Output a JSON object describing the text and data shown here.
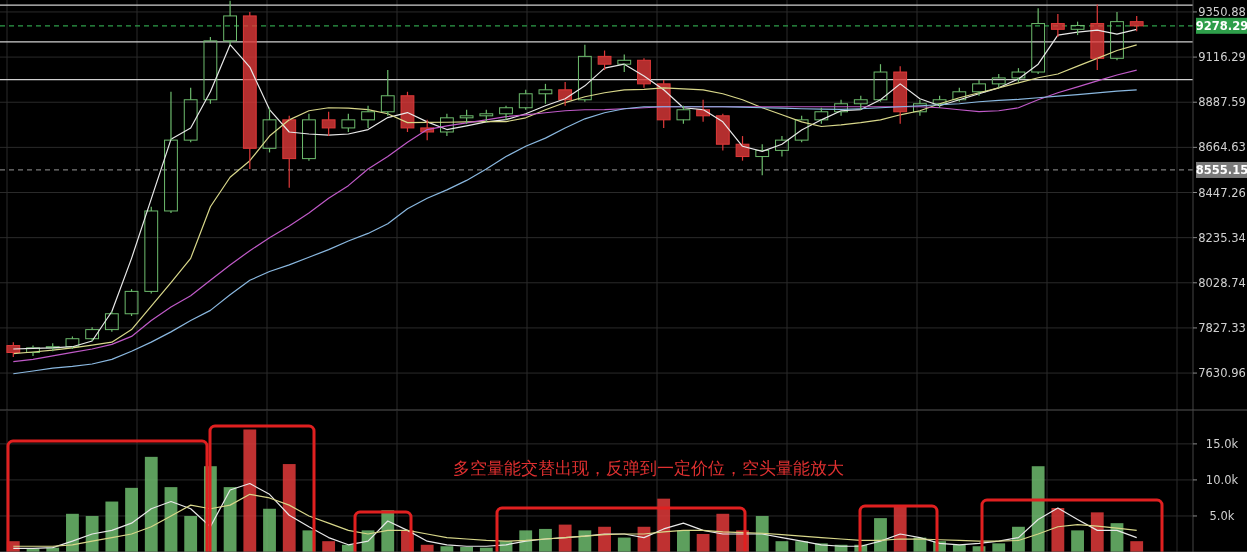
{
  "chart_data": [
    {
      "type": "candlestick",
      "log": true,
      "grid": true,
      "tick_labels": "y",
      "categories": [
        null,
        null,
        null,
        null,
        null,
        null,
        null,
        null,
        null,
        null,
        null,
        null,
        null,
        null,
        null,
        null,
        null,
        null,
        null,
        null,
        null,
        null,
        null,
        null,
        null,
        null,
        null,
        null,
        null,
        null,
        null,
        null,
        null,
        null,
        null,
        null,
        null,
        null,
        null,
        null,
        null,
        null,
        null,
        null,
        null,
        null,
        null,
        null,
        null,
        null,
        null,
        null,
        null,
        null,
        null,
        null,
        null,
        null
      ],
      "ylim": [
        7474,
        9414
      ],
      "yticks": [
        9350.88,
        9116.29,
        8887.59,
        8664.63,
        8447.26,
        8235.34,
        8028.74,
        7827.33,
        7630.96
      ],
      "ohlc": [
        [
          7750,
          7765,
          7700,
          7720
        ],
        [
          7720,
          7750,
          7705,
          7740
        ],
        [
          7740,
          7760,
          7725,
          7745
        ],
        [
          7745,
          7790,
          7735,
          7780
        ],
        [
          7780,
          7830,
          7770,
          7820
        ],
        [
          7820,
          7900,
          7810,
          7890
        ],
        [
          7890,
          8000,
          7880,
          7990
        ],
        [
          7990,
          8380,
          7980,
          8360
        ],
        [
          8360,
          8940,
          8350,
          8700
        ],
        [
          8700,
          8960,
          8690,
          8900
        ],
        [
          8900,
          9220,
          8880,
          9200
        ],
        [
          9200,
          9410,
          9180,
          9330
        ],
        [
          9330,
          9350,
          8560,
          8660
        ],
        [
          8660,
          8860,
          8640,
          8800
        ],
        [
          8800,
          8820,
          8470,
          8610
        ],
        [
          8610,
          8830,
          8600,
          8800
        ],
        [
          8800,
          8840,
          8720,
          8760
        ],
        [
          8760,
          8830,
          8740,
          8800
        ],
        [
          8800,
          8870,
          8760,
          8840
        ],
        [
          8840,
          9050,
          8820,
          8920
        ],
        [
          8920,
          8940,
          8740,
          8760
        ],
        [
          8760,
          8800,
          8700,
          8740
        ],
        [
          8740,
          8830,
          8720,
          8810
        ],
        [
          8810,
          8850,
          8780,
          8820
        ],
        [
          8820,
          8850,
          8790,
          8830
        ],
        [
          8830,
          8870,
          8800,
          8860
        ],
        [
          8860,
          8950,
          8850,
          8930
        ],
        [
          8930,
          8980,
          8880,
          8950
        ],
        [
          8950,
          8990,
          8870,
          8900
        ],
        [
          8900,
          9180,
          8890,
          9120
        ],
        [
          9120,
          9150,
          9050,
          9080
        ],
        [
          9080,
          9130,
          9040,
          9100
        ],
        [
          9100,
          9110,
          8960,
          8980
        ],
        [
          8980,
          9000,
          8760,
          8800
        ],
        [
          8800,
          8870,
          8780,
          8850
        ],
        [
          8850,
          8900,
          8790,
          8820
        ],
        [
          8820,
          8830,
          8650,
          8680
        ],
        [
          8680,
          8720,
          8600,
          8620
        ],
        [
          8620,
          8680,
          8530,
          8650
        ],
        [
          8650,
          8720,
          8620,
          8700
        ],
        [
          8700,
          8820,
          8690,
          8800
        ],
        [
          8800,
          8860,
          8780,
          8840
        ],
        [
          8840,
          8900,
          8820,
          8880
        ],
        [
          8880,
          8920,
          8850,
          8900
        ],
        [
          8900,
          9080,
          8890,
          9040
        ],
        [
          9040,
          9070,
          8780,
          8840
        ],
        [
          8840,
          8900,
          8820,
          8880
        ],
        [
          8880,
          8920,
          8860,
          8900
        ],
        [
          8900,
          8960,
          8890,
          8940
        ],
        [
          8940,
          9000,
          8920,
          8980
        ],
        [
          8980,
          9030,
          8960,
          9010
        ],
        [
          9010,
          9060,
          8990,
          9040
        ],
        [
          9040,
          9370,
          9030,
          9290
        ],
        [
          9290,
          9340,
          9220,
          9260
        ],
        [
          9260,
          9300,
          9230,
          9280
        ],
        [
          9290,
          9390,
          9050,
          9110
        ],
        [
          9110,
          9350,
          9100,
          9300
        ],
        [
          9300,
          9330,
          9250,
          9278
        ]
      ],
      "colors": [
        "#e03a3a",
        "#6dbb6d",
        "#6dbb6d",
        "#6dbb6d",
        "#6dbb6d",
        "#6dbb6d",
        "#6dbb6d",
        "#6dbb6d",
        "#6dbb6d",
        "#6dbb6d",
        "#6dbb6d",
        "#6dbb6d",
        "#e03a3a",
        "#6dbb6d",
        "#e03a3a",
        "#6dbb6d",
        "#e03a3a",
        "#6dbb6d",
        "#6dbb6d",
        "#6dbb6d",
        "#e03a3a",
        "#e03a3a",
        "#6dbb6d",
        "#6dbb6d",
        "#6dbb6d",
        "#6dbb6d",
        "#6dbb6d",
        "#6dbb6d",
        "#e03a3a",
        "#6dbb6d",
        "#e03a3a",
        "#6dbb6d",
        "#e03a3a",
        "#e03a3a",
        "#6dbb6d",
        "#e03a3a",
        "#e03a3a",
        "#e03a3a",
        "#6dbb6d",
        "#6dbb6d",
        "#6dbb6d",
        "#6dbb6d",
        "#6dbb6d",
        "#6dbb6d",
        "#6dbb6d",
        "#e03a3a",
        "#6dbb6d",
        "#6dbb6d",
        "#6dbb6d",
        "#6dbb6d",
        "#6dbb6d",
        "#6dbb6d",
        "#6dbb6d",
        "#e03a3a",
        "#6dbb6d",
        "#e03a3a",
        "#6dbb6d",
        "#e03a3a"
      ],
      "series": [
        {
          "type": "line",
          "color": "#e8e8e8",
          "values": [
            7735,
            7738,
            7740,
            7745,
            7770,
            7900,
            8140,
            8417,
            8704,
            8760,
            8940,
            9180,
            9065,
            8851,
            8740,
            8730,
            8725,
            8730,
            8752,
            8811,
            8836,
            8790,
            8752,
            8770,
            8790,
            8801,
            8830,
            8870,
            8905,
            8970,
            9060,
            9080,
            9020,
            8950,
            8860,
            8851,
            8790,
            8670,
            8645,
            8680,
            8750,
            8800,
            8845,
            8851,
            8900,
            8980,
            8905,
            8870,
            8900,
            8930,
            8960,
            9005,
            9080,
            9230,
            9245,
            9256,
            9235,
            9260
          ]
        },
        {
          "type": "line",
          "color": "#d8d78a",
          "values": [
            7715,
            7722,
            7730,
            7740,
            7752,
            7765,
            7820,
            7924,
            8030,
            8140,
            8380,
            8520,
            8600,
            8720,
            8800,
            8845,
            8860,
            8858,
            8851,
            8830,
            8786,
            8787,
            8788,
            8790,
            8791,
            8791,
            8810,
            8850,
            8886,
            8915,
            8935,
            8950,
            8952,
            8960,
            8955,
            8950,
            8930,
            8900,
            8860,
            8825,
            8790,
            8767,
            8775,
            8786,
            8800,
            8825,
            8845,
            8880,
            8910,
            8935,
            8960,
            8985,
            9011,
            9030,
            9070,
            9110,
            9150,
            9179
          ]
        },
        {
          "type": "line",
          "color": "#c05ac8",
          "values": [
            7680,
            7690,
            7705,
            7720,
            7735,
            7755,
            7790,
            7860,
            7920,
            7970,
            8040,
            8110,
            8175,
            8235,
            8290,
            8350,
            8420,
            8480,
            8560,
            8620,
            8690,
            8752,
            8770,
            8785,
            8800,
            8816,
            8825,
            8835,
            8845,
            8850,
            8851,
            8855,
            8860,
            8865,
            8865,
            8865,
            8865,
            8865,
            8865,
            8865,
            8865,
            8865,
            8865,
            8865,
            8865,
            8865,
            8865,
            8860,
            8850,
            8841,
            8845,
            8860,
            8900,
            8935,
            8965,
            8995,
            9025,
            9050
          ]
        },
        {
          "type": "line",
          "color": "#8ab8e0",
          "values": [
            7628,
            7640,
            7652,
            7660,
            7670,
            7690,
            7725,
            7765,
            7810,
            7860,
            7905,
            7975,
            8040,
            8080,
            8110,
            8145,
            8180,
            8220,
            8255,
            8300,
            8370,
            8420,
            8460,
            8505,
            8560,
            8620,
            8670,
            8710,
            8760,
            8805,
            8835,
            8855,
            8865,
            8865,
            8865,
            8865,
            8865,
            8863,
            8860,
            8858,
            8855,
            8853,
            8852,
            8855,
            8860,
            8865,
            8870,
            8875,
            8880,
            8890,
            8897,
            8902,
            8910,
            8918,
            8926,
            8935,
            8943,
            8950
          ]
        }
      ],
      "ref_lines": [
        {
          "axis": "y",
          "value": 9387,
          "color": "#d0d0d0",
          "line_style": "solid"
        },
        {
          "axis": "y",
          "value": 9195,
          "color": "#d0d0d0",
          "line_style": "solid"
        },
        {
          "axis": "y",
          "value": 9001,
          "color": "#d0d0d0",
          "line_style": "solid"
        },
        {
          "axis": "y",
          "value": 9278.29,
          "label": "9278.29",
          "color": "#2e9e4a",
          "line_style": "dashed"
        },
        {
          "axis": "y",
          "value": 8555.15,
          "label": "8555.15",
          "color": "#7a7a7a",
          "line_style": "dashed"
        }
      ]
    },
    {
      "type": "bar",
      "grid": true,
      "tick_labels": "y",
      "categories": [
        null,
        null,
        null,
        null,
        null,
        null,
        null,
        null,
        null,
        null,
        null,
        null,
        null,
        null,
        null,
        null,
        null,
        null,
        null,
        null,
        null,
        null,
        null,
        null,
        null,
        null,
        null,
        null,
        null,
        null,
        null,
        null,
        null,
        null,
        null,
        null,
        null,
        null,
        null,
        null,
        null,
        null,
        null,
        null,
        null,
        null,
        null,
        null,
        null,
        null,
        null,
        null,
        null,
        null,
        null,
        null,
        null,
        null
      ],
      "ylim": [
        0,
        19700
      ],
      "yticks": [
        {
          "value": 5000,
          "label": "5.0k"
        },
        {
          "value": 10000,
          "label": "10.0k"
        },
        {
          "value": 15000,
          "label": "15.0k"
        }
      ],
      "annotations": [
        "多空量能交替出现，反弹到一定价位，空头量能放大"
      ],
      "series": [
        {
          "type": "bar",
          "values": [
            1500,
            500,
            600,
            5300,
            5000,
            7000,
            8900,
            13200,
            9000,
            5000,
            11900,
            9000,
            17000,
            6000,
            12200,
            3000,
            1500,
            1000,
            3000,
            5800,
            3000,
            1000,
            800,
            700,
            600,
            1500,
            3000,
            3200,
            3800,
            3000,
            3500,
            2000,
            3500,
            7400,
            3000,
            2500,
            5300,
            3000,
            5000,
            1500,
            1500,
            1200,
            1000,
            1000,
            4700,
            6500,
            2000,
            1500,
            1000,
            800,
            1200,
            3500,
            11900,
            6100,
            3000,
            5500,
            4000,
            1500
          ],
          "colors": [
            "#e03a3a",
            "#6dbb6d",
            "#6dbb6d",
            "#6dbb6d",
            "#6dbb6d",
            "#6dbb6d",
            "#6dbb6d",
            "#6dbb6d",
            "#6dbb6d",
            "#6dbb6d",
            "#6dbb6d",
            "#6dbb6d",
            "#e03a3a",
            "#6dbb6d",
            "#e03a3a",
            "#6dbb6d",
            "#e03a3a",
            "#6dbb6d",
            "#6dbb6d",
            "#6dbb6d",
            "#e03a3a",
            "#e03a3a",
            "#6dbb6d",
            "#6dbb6d",
            "#6dbb6d",
            "#6dbb6d",
            "#6dbb6d",
            "#6dbb6d",
            "#e03a3a",
            "#6dbb6d",
            "#e03a3a",
            "#6dbb6d",
            "#e03a3a",
            "#e03a3a",
            "#6dbb6d",
            "#e03a3a",
            "#e03a3a",
            "#e03a3a",
            "#6dbb6d",
            "#6dbb6d",
            "#6dbb6d",
            "#6dbb6d",
            "#6dbb6d",
            "#6dbb6d",
            "#6dbb6d",
            "#e03a3a",
            "#6dbb6d",
            "#6dbb6d",
            "#6dbb6d",
            "#6dbb6d",
            "#6dbb6d",
            "#6dbb6d",
            "#6dbb6d",
            "#e03a3a",
            "#6dbb6d",
            "#e03a3a",
            "#6dbb6d",
            "#e03a3a"
          ]
        },
        {
          "type": "line",
          "color": "#e8e8e8",
          "values": [
            500,
            500,
            600,
            1500,
            2500,
            3000,
            4000,
            6000,
            7000,
            6000,
            3500,
            8600,
            9500,
            8000,
            5100,
            3500,
            2000,
            1000,
            1500,
            4300,
            3000,
            1500,
            1000,
            800,
            800,
            1000,
            1500,
            1800,
            2000,
            2200,
            2500,
            2500,
            2000,
            3200,
            4000,
            3000,
            2500,
            2500,
            2500,
            2000,
            1500,
            1000,
            800,
            800,
            1500,
            2500,
            2000,
            1200,
            1000,
            1200,
            1500,
            2000,
            4500,
            6100,
            4500,
            3000,
            3000,
            2000
          ]
        },
        {
          "type": "line",
          "color": "#d8d78a",
          "values": [
            800,
            800,
            800,
            1000,
            1500,
            2000,
            2500,
            3500,
            5000,
            6500,
            6000,
            6500,
            8000,
            7500,
            6500,
            5000,
            4000,
            3000,
            2500,
            3000,
            3000,
            2500,
            2000,
            1800,
            1600,
            1500,
            1600,
            1800,
            2000,
            2200,
            2400,
            2500,
            2500,
            2800,
            3000,
            3000,
            2800,
            2700,
            2600,
            2400,
            2200,
            2000,
            1800,
            1600,
            1600,
            1800,
            1800,
            1700,
            1600,
            1500,
            1500,
            1600,
            2500,
            3500,
            3800,
            3600,
            3300,
            3000
          ]
        }
      ]
    }
  ]
}
